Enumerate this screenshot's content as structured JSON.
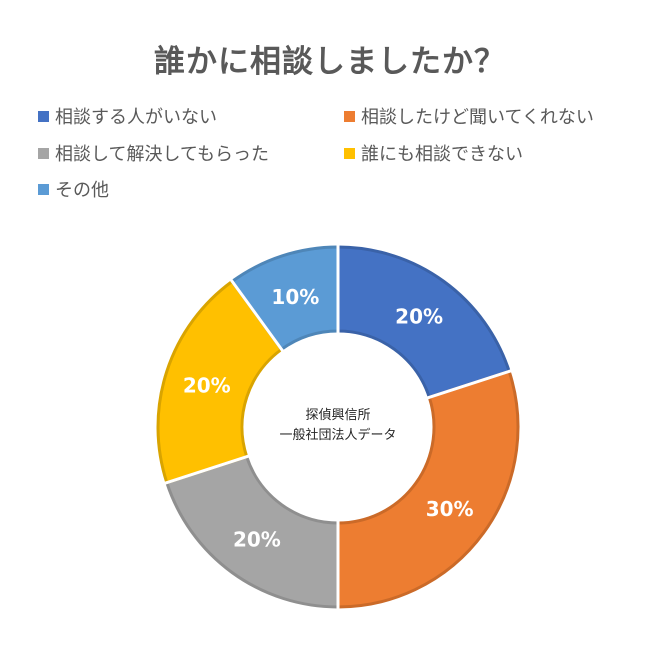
{
  "chart_data": {
    "type": "pie",
    "variant": "donut",
    "title": "誰かに相談しましたか？",
    "center_text": [
      "探偵興信所",
      "一般社団法人データ"
    ],
    "legend_position": "top",
    "categories": [
      "相談する人がいない",
      "相談したけど聞いてくれない",
      "相談して解決してもらった",
      "誰にも相談できない",
      "その他"
    ],
    "values": [
      20,
      30,
      20,
      20,
      10
    ],
    "data_labels": [
      "20%",
      "30%",
      "20%",
      "20%",
      "10%"
    ],
    "colors": [
      "#4472C4",
      "#ED7D31",
      "#A5A5A5",
      "#FFC000",
      "#5B9BD5"
    ],
    "border_colors": [
      "#3A62A8",
      "#CB6A28",
      "#8F8F8F",
      "#D9A400",
      "#4E86B8"
    ]
  }
}
